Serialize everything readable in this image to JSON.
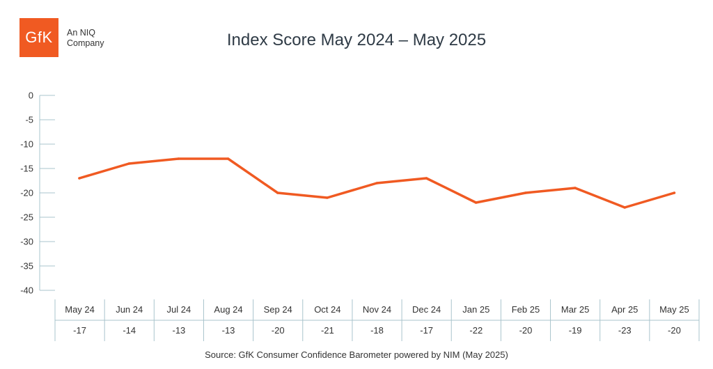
{
  "branding": {
    "logo_text": "GfK",
    "line1": "An NIQ",
    "line2": "Company"
  },
  "source": "Source: GfK Consumer Confidence Barometer powered by NIM (May 2025)",
  "colors": {
    "line": "#f05a22",
    "logo": "#f05a22",
    "axis": "#a9c4cc"
  },
  "chart_data": {
    "type": "line",
    "title": "Index Score May 2024 – May 2025",
    "categories": [
      "May 24",
      "Jun 24",
      "Jul 24",
      "Aug 24",
      "Sep 24",
      "Oct 24",
      "Nov 24",
      "Dec 24",
      "Jan 25",
      "Feb 25",
      "Mar 25",
      "Apr 25",
      "May 25"
    ],
    "values": [
      -17,
      -14,
      -13,
      -13,
      -20,
      -21,
      -18,
      -17,
      -22,
      -20,
      -19,
      -23,
      -20
    ],
    "value_labels": [
      "-17",
      "-14",
      "-13",
      "-13",
      "-20",
      "-21",
      "-18",
      "-17",
      "-22",
      "-20",
      "-19",
      "-23",
      "-20"
    ],
    "ylim": [
      -40,
      0
    ],
    "yticks": [
      0,
      -5,
      -10,
      -15,
      -20,
      -25,
      -30,
      -35,
      -40
    ],
    "ytick_labels": [
      "0",
      "-5",
      "-10",
      "-15",
      "-20",
      "-25",
      "-30",
      "-35",
      "-40"
    ],
    "xlabel": "",
    "ylabel": "",
    "grid": false,
    "legend": "none"
  }
}
